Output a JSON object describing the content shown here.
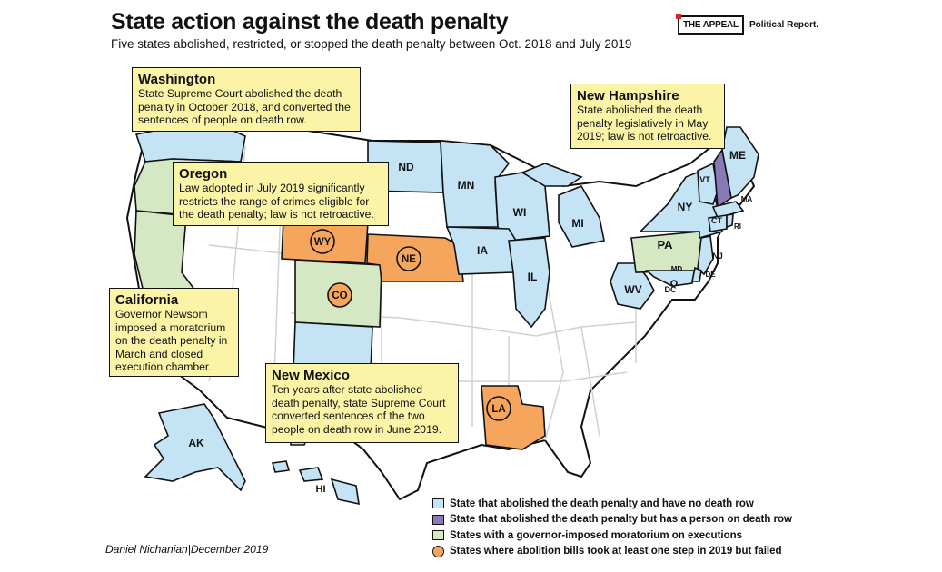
{
  "header": {
    "title": "State action against the death penalty",
    "subtitle": "Five states abolished, restricted, or stopped the death penalty between Oct. 2018 and July 2019"
  },
  "brand": {
    "logo": "THE APPEAL",
    "text": "Political Report."
  },
  "colors": {
    "abolished": "#c4e4f6",
    "abolished_with_row": "#8a79b7",
    "moratorium": "#d4e8c3",
    "bill_failed": "#f5a65c",
    "default_state": "#ffffff",
    "callout": "#fbf3a6"
  },
  "callouts": {
    "washington": {
      "title": "Washington",
      "body": "State Supreme Court abolished the death penalty in October 2018, and converted the sentences of people on death row."
    },
    "oregon": {
      "title": "Oregon",
      "body": "Law adopted in July 2019 significantly restricts the range of crimes eligible for the death penalty; law is not retroactive."
    },
    "california": {
      "title": "California",
      "body": "Governor Newsom imposed a moratorium on the death penalty in March and closed execution chamber."
    },
    "new_mexico": {
      "title": "New Mexico",
      "body": "Ten years after state abolished death penalty, state Supreme Court converted sentences of the two people on death row in June 2019."
    },
    "new_hampshire": {
      "title": "New Hampshire",
      "body": "State abolished the death penalty legislatively in May 2019; law is not retroactive."
    }
  },
  "states": {
    "ND": {
      "label": "ND",
      "category": "abolished"
    },
    "MN": {
      "label": "MN",
      "category": "abolished"
    },
    "WI": {
      "label": "WI",
      "category": "abolished"
    },
    "MI": {
      "label": "MI",
      "category": "abolished"
    },
    "IA": {
      "label": "IA",
      "category": "abolished"
    },
    "IL": {
      "label": "IL",
      "category": "abolished"
    },
    "NY": {
      "label": "NY",
      "category": "abolished"
    },
    "VT": {
      "label": "VT",
      "category": "abolished"
    },
    "ME": {
      "label": "ME",
      "category": "abolished"
    },
    "MA": {
      "label": "MA",
      "category": "abolished"
    },
    "CT": {
      "label": "CT",
      "category": "abolished"
    },
    "RI": {
      "label": "RI",
      "category": "abolished"
    },
    "NJ": {
      "label": "NJ",
      "category": "abolished"
    },
    "MD": {
      "label": "MD",
      "category": "abolished"
    },
    "DE": {
      "label": "DE",
      "category": "abolished"
    },
    "DC": {
      "label": "DC",
      "category": "abolished"
    },
    "WV": {
      "label": "WV",
      "category": "abolished"
    },
    "AK": {
      "label": "AK",
      "category": "abolished"
    },
    "HI": {
      "label": "HI",
      "category": "abolished"
    },
    "WA": {
      "label": "",
      "category": "abolished"
    },
    "NM": {
      "label": "",
      "category": "abolished"
    },
    "NH": {
      "label": "",
      "category": "abolished_with_row"
    },
    "OR": {
      "label": "",
      "category": "moratorium"
    },
    "CA": {
      "label": "",
      "category": "moratorium"
    },
    "PA": {
      "label": "PA",
      "category": "moratorium"
    },
    "CO": {
      "label": "CO",
      "category": "moratorium"
    },
    "WY": {
      "label": "WY",
      "category": "bill_failed"
    },
    "NE": {
      "label": "NE",
      "category": "bill_failed"
    },
    "LA": {
      "label": "LA",
      "category": "bill_failed"
    }
  },
  "legend": [
    {
      "label": "State that abolished the death penalty and have no death row",
      "color": "#c4e4f6",
      "shape": "square"
    },
    {
      "label": "State that abolished the death penalty but has a person on death row",
      "color": "#8a79b7",
      "shape": "square"
    },
    {
      "label": "States with a governor-imposed moratorium on executions",
      "color": "#d4e8c3",
      "shape": "square"
    },
    {
      "label": "States where abolition bills took at least one step in 2019 but failed",
      "color": "#f5a65c",
      "shape": "circle"
    }
  ],
  "credit": {
    "author": "Daniel Nichanian",
    "date": "December 2019"
  }
}
